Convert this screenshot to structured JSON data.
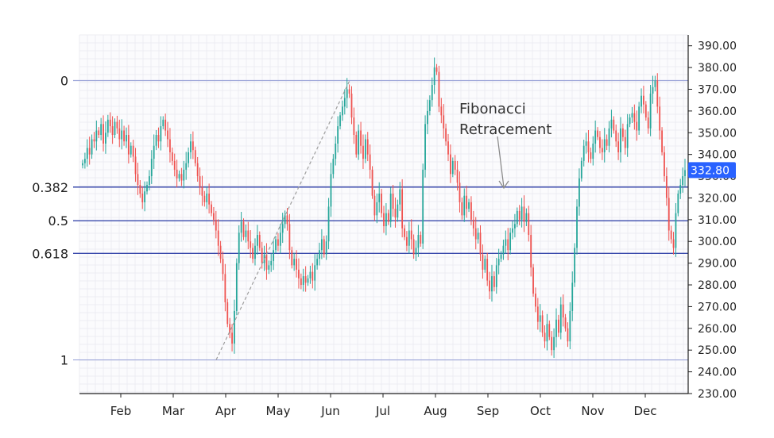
{
  "chart_data": {
    "type": "candlestick",
    "title": "",
    "xlabel": "",
    "ylabel": "",
    "ylim": [
      230,
      395
    ],
    "y_ticks": [
      230,
      240,
      250,
      260,
      270,
      280,
      290,
      300,
      310,
      320,
      330,
      340,
      350,
      360,
      370,
      380,
      390
    ],
    "y_tick_labels": [
      "230.00",
      "240.00",
      "250.00",
      "260.00",
      "270.00",
      "280.00",
      "290.00",
      "300.00",
      "310.00",
      "320.00",
      "330.00",
      "340.00",
      "350.00",
      "360.00",
      "370.00",
      "380.00",
      "390.00"
    ],
    "x_months": [
      "Feb",
      "Mar",
      "Apr",
      "May",
      "Jun",
      "Jul",
      "Aug",
      "Sep",
      "Oct",
      "Nov",
      "Dec"
    ],
    "grid": true,
    "last_price": "332.80",
    "last_price_value": 332.8,
    "colors": {
      "up": "#26a69a",
      "down": "#ef5350",
      "fib_line": "#3949ab",
      "fib_extreme_line": "#9fa8da",
      "price_tag": "#2962ff",
      "grid": "#ececf2"
    },
    "annotation": {
      "text_line1": "Fibonacci",
      "text_line2": "Retracement"
    },
    "fib_levels": [
      {
        "label": "0",
        "value": 374
      },
      {
        "label": "0.382",
        "value": 325
      },
      {
        "label": "0.5",
        "value": 309.5
      },
      {
        "label": "0.618",
        "value": 294.5
      },
      {
        "label": "1",
        "value": 245.5
      }
    ],
    "trend_line": {
      "from_value": 245.5,
      "to_value": 374
    },
    "closes": [
      336,
      338,
      343,
      340,
      347,
      346,
      351,
      349,
      354,
      345,
      350,
      356,
      353,
      349,
      355,
      352,
      347,
      351,
      346,
      349,
      340,
      344,
      339,
      331,
      326,
      322,
      318,
      323,
      326,
      330,
      338,
      344,
      349,
      346,
      353,
      356,
      351,
      347,
      341,
      337,
      333,
      329,
      331,
      328,
      333,
      336,
      341,
      346,
      342,
      336,
      330,
      325,
      321,
      318,
      322,
      317,
      313,
      310,
      305,
      298,
      292,
      285,
      272,
      262,
      258,
      253,
      268,
      290,
      304,
      309,
      302,
      305,
      300,
      297,
      292,
      298,
      303,
      297,
      290,
      294,
      287,
      289,
      291,
      296,
      301,
      298,
      304,
      308,
      312,
      308,
      296,
      289,
      292,
      287,
      283,
      280,
      284,
      281,
      283,
      286,
      282,
      289,
      292,
      296,
      301,
      294,
      300,
      316,
      331,
      338,
      345,
      353,
      358,
      362,
      366,
      370,
      368,
      357,
      349,
      340,
      351,
      344,
      338,
      347,
      340,
      333,
      321,
      312,
      318,
      322,
      313,
      307,
      313,
      309,
      322,
      315,
      311,
      317,
      324,
      306,
      302,
      298,
      305,
      301,
      294,
      297,
      303,
      299,
      333,
      354,
      360,
      365,
      372,
      380,
      378,
      362,
      358,
      352,
      346,
      340,
      331,
      337,
      333,
      327,
      318,
      312,
      321,
      315,
      318,
      310,
      306,
      301,
      304,
      294,
      287,
      292,
      282,
      277,
      284,
      279,
      289,
      292,
      294,
      298,
      301,
      296,
      304,
      306,
      308,
      314,
      310,
      316,
      309,
      313,
      303,
      288,
      276,
      270,
      263,
      266,
      258,
      254,
      262,
      256,
      250,
      256,
      264,
      258,
      271,
      265,
      260,
      254,
      268,
      281,
      297,
      316,
      329,
      337,
      344,
      346,
      341,
      338,
      345,
      351,
      348,
      343,
      341,
      347,
      344,
      352,
      356,
      351,
      346,
      341,
      352,
      348,
      343,
      354,
      357,
      359,
      355,
      351,
      362,
      367,
      363,
      357,
      352,
      368,
      371,
      374,
      362,
      351,
      341,
      330,
      320,
      305,
      301,
      297,
      313,
      322,
      326,
      330,
      332.8
    ]
  }
}
